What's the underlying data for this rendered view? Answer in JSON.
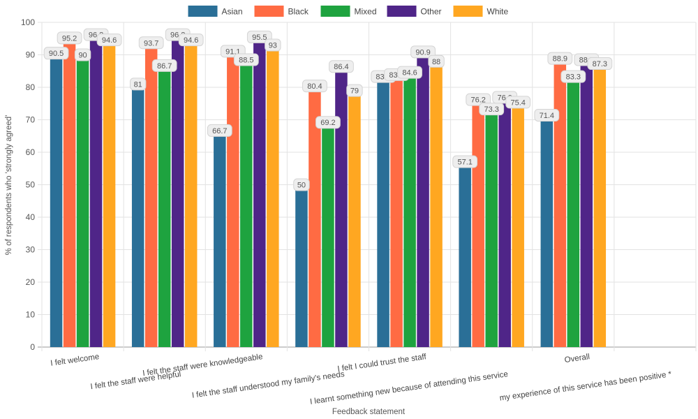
{
  "chart_data": {
    "type": "bar",
    "xlabel": "Feedback statement",
    "ylabel": "% of respondents who 'strongly agreed'",
    "ylim": [
      0,
      100
    ],
    "yticks": [
      0,
      10,
      20,
      30,
      40,
      50,
      60,
      70,
      80,
      90,
      100
    ],
    "grid": true,
    "legend_position": "top-center",
    "categories": [
      "I felt welcome",
      "I felt the staff were helpful",
      "I felt the staff were knowledgeable",
      "I felt the staff understood my family's needs",
      "I felt I could trust the staff",
      "I learnt something new because of attending this service",
      "Overall",
      "my experience of this service has been positive *"
    ],
    "series": [
      {
        "name": "Asian",
        "color": "#2a6f97",
        "values": [
          90.5,
          81,
          66.7,
          50,
          83.3,
          57.1,
          71.4,
          null
        ]
      },
      {
        "name": "Black",
        "color": "#ff6b43",
        "values": [
          95.2,
          93.7,
          91.1,
          80.4,
          83.9,
          76.2,
          88.9,
          null
        ]
      },
      {
        "name": "Mixed",
        "color": "#1ea33f",
        "values": [
          90,
          86.7,
          88.5,
          69.2,
          84.6,
          73.3,
          83.3,
          null
        ]
      },
      {
        "name": "Other",
        "color": "#4f2588",
        "values": [
          96.2,
          96.2,
          95.5,
          86.4,
          90.9,
          76.9,
          88.5,
          null
        ]
      },
      {
        "name": "White",
        "color": "#ffa721",
        "values": [
          94.6,
          94.6,
          93,
          79,
          88,
          75.4,
          87.3,
          null
        ]
      }
    ]
  }
}
